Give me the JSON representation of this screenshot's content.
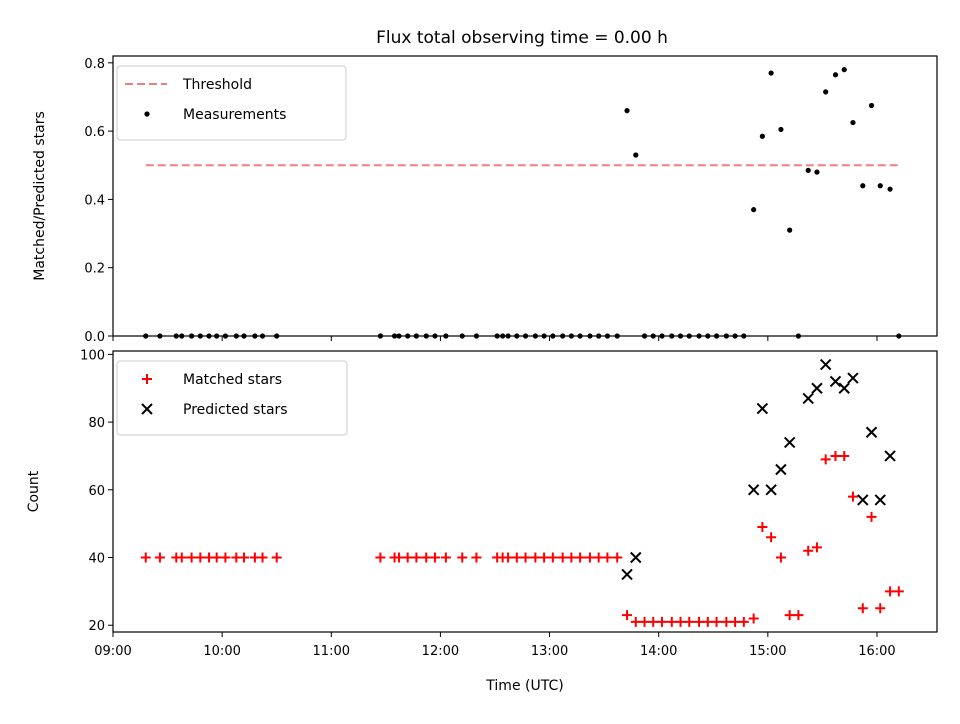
{
  "chart_data": [
    {
      "type": "scatter",
      "title": "Flux total observing time = 0.00 h",
      "xlabel": "",
      "ylabel": "Matched/Predicted stars",
      "xlim": [
        9.0,
        16.55
      ],
      "ylim": [
        0,
        0.82
      ],
      "yticks": [
        0.0,
        0.2,
        0.4,
        0.6,
        0.8
      ],
      "ytick_labels": [
        "0.0",
        "0.2",
        "0.4",
        "0.6",
        "0.8"
      ],
      "legend_position": "upper-left",
      "threshold": {
        "name": "Threshold",
        "value": 0.5,
        "x_range": [
          9.3,
          16.2
        ],
        "color": "#f08080",
        "style": "dashed"
      },
      "series": [
        {
          "name": "Measurements",
          "color": "#000000",
          "marker": "dot",
          "x": [
            9.3,
            9.43,
            9.58,
            9.63,
            9.72,
            9.8,
            9.88,
            9.95,
            10.03,
            10.13,
            10.2,
            10.3,
            10.37,
            10.5,
            11.45,
            11.58,
            11.62,
            11.7,
            11.78,
            11.87,
            11.95,
            12.05,
            12.2,
            12.33,
            12.52,
            12.57,
            12.62,
            12.7,
            12.78,
            12.87,
            12.95,
            13.03,
            13.12,
            13.2,
            13.28,
            13.37,
            13.45,
            13.53,
            13.62,
            13.71,
            13.79,
            13.87,
            13.95,
            14.03,
            14.12,
            14.2,
            14.28,
            14.37,
            14.45,
            14.53,
            14.62,
            14.7,
            14.78,
            14.87,
            14.95,
            15.03,
            15.12,
            15.2,
            15.28,
            15.37,
            15.45,
            15.53,
            15.62,
            15.7,
            15.78,
            15.87,
            15.95,
            16.03,
            16.12,
            16.2
          ],
          "y": [
            0,
            0,
            0,
            0,
            0,
            0,
            0,
            0,
            0,
            0,
            0,
            0,
            0,
            0,
            0,
            0,
            0,
            0,
            0,
            0,
            0,
            0,
            0,
            0,
            0,
            0,
            0,
            0,
            0,
            0,
            0,
            0,
            0,
            0,
            0,
            0,
            0,
            0,
            0,
            0.66,
            0.53,
            0,
            0,
            0,
            0,
            0,
            0,
            0,
            0,
            0,
            0,
            0,
            0,
            0.37,
            0.585,
            0.77,
            0.605,
            0.31,
            0,
            0.485,
            0.48,
            0.715,
            0.765,
            0.78,
            0.625,
            0.44,
            0.675,
            0.44,
            0.43,
            0
          ]
        }
      ]
    },
    {
      "type": "scatter",
      "title": "",
      "xlabel": "Time (UTC)",
      "ylabel": "Count",
      "xlim": [
        9.0,
        16.55
      ],
      "ylim": [
        18,
        101
      ],
      "yticks": [
        20,
        40,
        60,
        80,
        100
      ],
      "ytick_labels": [
        "20",
        "40",
        "60",
        "80",
        "100"
      ],
      "xticks": [
        9,
        10,
        11,
        12,
        13,
        14,
        15,
        16
      ],
      "xtick_labels": [
        "09:00",
        "10:00",
        "11:00",
        "12:00",
        "13:00",
        "14:00",
        "15:00",
        "16:00"
      ],
      "legend_position": "upper-left",
      "series": [
        {
          "name": "Matched stars",
          "color": "#ff0000",
          "marker": "plus",
          "x": [
            9.3,
            9.43,
            9.58,
            9.63,
            9.72,
            9.8,
            9.88,
            9.95,
            10.03,
            10.13,
            10.2,
            10.3,
            10.37,
            10.5,
            11.45,
            11.58,
            11.62,
            11.7,
            11.78,
            11.87,
            11.95,
            12.05,
            12.2,
            12.33,
            12.52,
            12.57,
            12.62,
            12.7,
            12.78,
            12.87,
            12.95,
            13.03,
            13.12,
            13.2,
            13.28,
            13.37,
            13.45,
            13.53,
            13.62,
            13.71,
            13.79,
            13.87,
            13.95,
            14.03,
            14.12,
            14.2,
            14.28,
            14.37,
            14.45,
            14.53,
            14.62,
            14.7,
            14.78,
            14.87,
            14.95,
            15.03,
            15.12,
            15.2,
            15.28,
            15.37,
            15.45,
            15.53,
            15.62,
            15.7,
            15.78,
            15.87,
            15.95,
            16.03,
            16.12,
            16.2
          ],
          "y": [
            40,
            40,
            40,
            40,
            40,
            40,
            40,
            40,
            40,
            40,
            40,
            40,
            40,
            40,
            40,
            40,
            40,
            40,
            40,
            40,
            40,
            40,
            40,
            40,
            40,
            40,
            40,
            40,
            40,
            40,
            40,
            40,
            40,
            40,
            40,
            40,
            40,
            40,
            40,
            23,
            21,
            21,
            21,
            21,
            21,
            21,
            21,
            21,
            21,
            21,
            21,
            21,
            21,
            22,
            49,
            46,
            40,
            23,
            23,
            42,
            43,
            69,
            70,
            70,
            58,
            25,
            52,
            25,
            30,
            30
          ]
        },
        {
          "name": "Predicted stars",
          "color": "#000000",
          "marker": "x",
          "x": [
            13.71,
            13.79,
            14.87,
            14.95,
            15.03,
            15.12,
            15.2,
            15.37,
            15.45,
            15.53,
            15.62,
            15.7,
            15.78,
            15.87,
            15.95,
            16.03,
            16.12
          ],
          "y": [
            35,
            40,
            60,
            84,
            60,
            66,
            74,
            87,
            90,
            97,
            92,
            90,
            93,
            57,
            77,
            57,
            70
          ]
        }
      ]
    }
  ]
}
